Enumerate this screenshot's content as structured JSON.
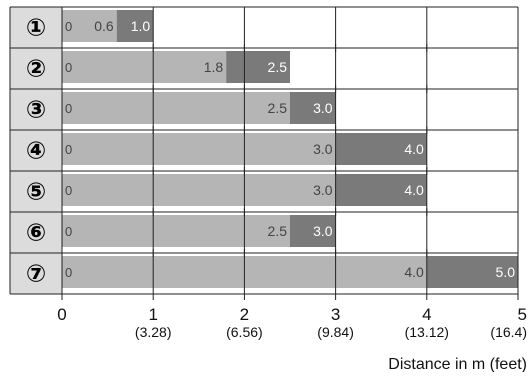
{
  "chart_data": {
    "type": "bar",
    "orientation": "horizontal",
    "stacked": true,
    "categories": [
      "①",
      "②",
      "③",
      "④",
      "⑤",
      "⑥",
      "⑦"
    ],
    "rows": [
      {
        "label": "①",
        "start": 0,
        "light_end": 0.6,
        "dark_end": 1.0,
        "start_label": "0",
        "light_label": "0.6",
        "dark_label": "1.0"
      },
      {
        "label": "②",
        "start": 0,
        "light_end": 1.8,
        "dark_end": 2.5,
        "start_label": "0",
        "light_label": "1.8",
        "dark_label": "2.5"
      },
      {
        "label": "③",
        "start": 0,
        "light_end": 2.5,
        "dark_end": 3.0,
        "start_label": "0",
        "light_label": "2.5",
        "dark_label": "3.0"
      },
      {
        "label": "④",
        "start": 0,
        "light_end": 3.0,
        "dark_end": 4.0,
        "start_label": "0",
        "light_label": "3.0",
        "dark_label": "4.0"
      },
      {
        "label": "⑤",
        "start": 0,
        "light_end": 3.0,
        "dark_end": 4.0,
        "start_label": "0",
        "light_label": "3.0",
        "dark_label": "4.0"
      },
      {
        "label": "⑥",
        "start": 0,
        "light_end": 2.5,
        "dark_end": 3.0,
        "start_label": "0",
        "light_label": "2.5",
        "dark_label": "3.0"
      },
      {
        "label": "⑦",
        "start": 0,
        "light_end": 4.0,
        "dark_end": 5.0,
        "start_label": "0",
        "light_label": "4.0",
        "dark_label": "5.0"
      }
    ],
    "x_ticks": [
      {
        "value": 0,
        "label": "0",
        "sub": ""
      },
      {
        "value": 1,
        "label": "1",
        "sub": "(3.28)"
      },
      {
        "value": 2,
        "label": "2",
        "sub": "(6.56)"
      },
      {
        "value": 3,
        "label": "3",
        "sub": "(9.84)"
      },
      {
        "value": 4,
        "label": "4",
        "sub": "(13.12)"
      },
      {
        "value": 5,
        "label": "5",
        "sub": "(16.4)"
      }
    ],
    "xlabel": "Distance in m (feet)",
    "xlim": [
      0,
      5
    ],
    "grid": true,
    "colors": {
      "light": "#b5b5b5",
      "dark": "#7a7a7a",
      "label_column": "#dcdcdc",
      "grid": "#222222",
      "text_on_dark": "#ffffff",
      "text_on_light": "#444444"
    }
  }
}
